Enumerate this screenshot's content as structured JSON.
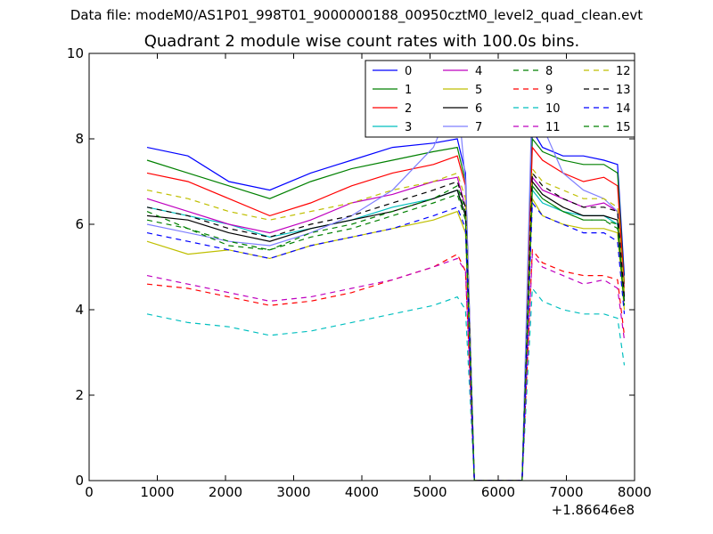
{
  "suptitle": "Data file: modeM0/AS1P01_998T01_9000000188_00950cztM0_level2_quad_clean.evt",
  "chart_data": {
    "type": "line",
    "title": "Quadrant 2 module wise count rates with 100.0s bins.",
    "xlabel": "",
    "ylabel": "",
    "x_offset_label": "+1.86646e8",
    "xlim": [
      0,
      8000
    ],
    "ylim": [
      0,
      10
    ],
    "xticks": [
      "0",
      "1000",
      "2000",
      "3000",
      "4000",
      "5000",
      "6000",
      "7000",
      "8000"
    ],
    "yticks": [
      "0",
      "2",
      "4",
      "6",
      "8",
      "10"
    ],
    "legend_position": "upper-right",
    "x": [
      850,
      1450,
      2050,
      2650,
      3250,
      3850,
      4450,
      5050,
      5400,
      5520,
      5650,
      6000,
      6350,
      6500,
      6650,
      6950,
      7250,
      7550,
      7750,
      7850
    ],
    "series": [
      {
        "name": "0",
        "color": "#0000ff",
        "dash": "solid",
        "values": [
          7.8,
          7.6,
          7.0,
          6.8,
          7.2,
          7.5,
          7.8,
          7.9,
          8.0,
          7.2,
          0,
          0,
          0,
          8.2,
          7.8,
          7.6,
          7.6,
          7.5,
          7.4,
          4.8
        ]
      },
      {
        "name": "1",
        "color": "#008000",
        "dash": "solid",
        "values": [
          7.5,
          7.2,
          6.9,
          6.6,
          7.0,
          7.3,
          7.5,
          7.7,
          7.8,
          7.0,
          0,
          0,
          0,
          8.0,
          7.7,
          7.5,
          7.4,
          7.4,
          7.2,
          4.6
        ]
      },
      {
        "name": "2",
        "color": "#ff0000",
        "dash": "solid",
        "values": [
          7.2,
          7.0,
          6.6,
          6.2,
          6.5,
          6.9,
          7.2,
          7.4,
          7.6,
          6.9,
          0,
          0,
          0,
          7.8,
          7.5,
          7.2,
          7.0,
          7.1,
          6.9,
          4.5
        ]
      },
      {
        "name": "3",
        "color": "#00bfbf",
        "dash": "solid",
        "values": [
          6.4,
          6.2,
          6.0,
          5.7,
          5.9,
          6.1,
          6.4,
          6.6,
          6.8,
          6.2,
          0,
          0,
          0,
          6.8,
          6.5,
          6.3,
          6.2,
          6.2,
          6.0,
          4.2
        ]
      },
      {
        "name": "4",
        "color": "#bf00bf",
        "dash": "solid",
        "values": [
          6.6,
          6.3,
          6.0,
          5.8,
          6.1,
          6.5,
          6.7,
          7.0,
          7.1,
          6.4,
          0,
          0,
          0,
          7.1,
          6.8,
          6.6,
          6.4,
          6.5,
          6.3,
          4.3
        ]
      },
      {
        "name": "5",
        "color": "#bfbf00",
        "dash": "solid",
        "values": [
          5.6,
          5.3,
          5.4,
          5.2,
          5.5,
          5.7,
          5.9,
          6.1,
          6.3,
          5.8,
          0,
          0,
          0,
          6.6,
          6.2,
          6.0,
          5.9,
          5.9,
          5.8,
          4.0
        ]
      },
      {
        "name": "6",
        "color": "#000000",
        "dash": "solid",
        "values": [
          6.2,
          6.1,
          5.8,
          5.6,
          5.9,
          6.1,
          6.3,
          6.6,
          6.8,
          6.2,
          0,
          0,
          0,
          7.0,
          6.7,
          6.4,
          6.2,
          6.2,
          6.1,
          4.2
        ]
      },
      {
        "name": "7",
        "color": "#7f7fff",
        "dash": "solid",
        "values": [
          6.0,
          5.8,
          5.6,
          5.5,
          5.8,
          6.2,
          6.8,
          7.8,
          9.1,
          7.0,
          0,
          0,
          0,
          9.2,
          8.3,
          7.2,
          6.8,
          6.6,
          6.3,
          4.4
        ]
      },
      {
        "name": "8",
        "color": "#008000",
        "dash": "dashed",
        "values": [
          6.3,
          5.9,
          5.5,
          5.4,
          5.8,
          6.0,
          6.3,
          6.6,
          6.9,
          6.3,
          0,
          0,
          0,
          6.9,
          6.6,
          6.3,
          6.1,
          6.1,
          6.0,
          4.1
        ]
      },
      {
        "name": "9",
        "color": "#ff0000",
        "dash": "dashed",
        "values": [
          4.6,
          4.5,
          4.3,
          4.1,
          4.2,
          4.4,
          4.7,
          5.0,
          5.3,
          4.9,
          0,
          0,
          0,
          5.4,
          5.1,
          4.9,
          4.8,
          4.8,
          4.7,
          3.4
        ]
      },
      {
        "name": "10",
        "color": "#00bfbf",
        "dash": "dashed",
        "values": [
          3.9,
          3.7,
          3.6,
          3.4,
          3.5,
          3.7,
          3.9,
          4.1,
          4.3,
          4.0,
          0,
          0,
          0,
          4.5,
          4.2,
          4.0,
          3.9,
          3.9,
          3.8,
          2.7
        ]
      },
      {
        "name": "11",
        "color": "#bf00bf",
        "dash": "dashed",
        "values": [
          4.8,
          4.6,
          4.4,
          4.2,
          4.3,
          4.5,
          4.7,
          5.0,
          5.2,
          4.9,
          0,
          0,
          0,
          5.3,
          5.0,
          4.8,
          4.6,
          4.7,
          4.5,
          3.3
        ]
      },
      {
        "name": "12",
        "color": "#bfbf00",
        "dash": "dashed",
        "values": [
          6.8,
          6.6,
          6.3,
          6.1,
          6.3,
          6.5,
          6.8,
          7.0,
          7.2,
          6.6,
          0,
          0,
          0,
          7.3,
          7.0,
          6.8,
          6.6,
          6.6,
          6.4,
          4.4
        ]
      },
      {
        "name": "13",
        "color": "#000000",
        "dash": "dashed",
        "values": [
          6.4,
          6.2,
          5.9,
          5.7,
          6.0,
          6.2,
          6.5,
          6.8,
          7.0,
          6.4,
          0,
          0,
          0,
          7.2,
          6.9,
          6.6,
          6.4,
          6.4,
          6.3,
          4.3
        ]
      },
      {
        "name": "14",
        "color": "#0000ff",
        "dash": "dashed",
        "values": [
          5.8,
          5.6,
          5.4,
          5.2,
          5.5,
          5.7,
          5.9,
          6.2,
          6.4,
          5.9,
          0,
          0,
          0,
          6.5,
          6.2,
          6.0,
          5.8,
          5.8,
          5.6,
          3.9
        ]
      },
      {
        "name": "15",
        "color": "#008000",
        "dash": "dashed",
        "values": [
          6.1,
          5.9,
          5.6,
          5.4,
          5.7,
          5.9,
          6.2,
          6.5,
          6.7,
          6.1,
          0,
          0,
          0,
          6.9,
          6.6,
          6.3,
          6.1,
          6.1,
          5.9,
          4.1
        ]
      }
    ]
  }
}
